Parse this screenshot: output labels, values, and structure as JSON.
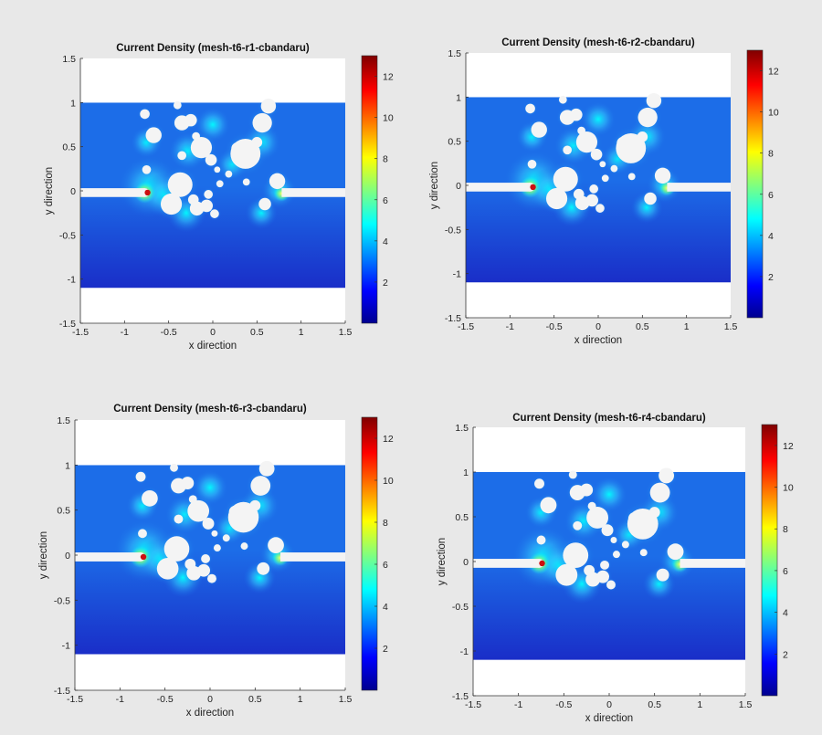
{
  "palette": {
    "background": "#e8e8e8",
    "domain_low": "#1a2ec8",
    "domain_mid": "#1c6de8",
    "hotspot": "#00ffff",
    "hole": "#f4f4f4"
  },
  "chart_data": [
    {
      "type": "heatmap",
      "title": "Current Density (mesh-t6-r1-cbandaru)",
      "xlabel": "x direction",
      "ylabel": "y direction",
      "xlim": [
        -1.5,
        1.5
      ],
      "ylim": [
        -1.5,
        1.5
      ],
      "x_ticks": [
        "-1.5",
        "-1",
        "-0.5",
        "0",
        "0.5",
        "1",
        "1.5"
      ],
      "y_ticks": [
        "1.5",
        "1",
        "0.5",
        "0",
        "-0.5",
        "-1",
        "-1.5"
      ],
      "colorbar": {
        "colormap": "jet",
        "range": [
          0,
          13
        ],
        "ticks": [
          "12",
          "10",
          "8",
          "6",
          "4",
          "2"
        ]
      }
    },
    {
      "type": "heatmap",
      "title": "Current Density (mesh-t6-r2-cbandaru)",
      "xlabel": "x direction",
      "ylabel": "y direction",
      "xlim": [
        -1.5,
        1.5
      ],
      "ylim": [
        -1.5,
        1.5
      ],
      "x_ticks": [
        "-1.5",
        "-1",
        "-0.5",
        "0",
        "0.5",
        "1",
        "1.5"
      ],
      "y_ticks": [
        "1.5",
        "1",
        "0.5",
        "0",
        "-0.5",
        "-1",
        "-1.5"
      ],
      "colorbar": {
        "colormap": "jet",
        "range": [
          0,
          13
        ],
        "ticks": [
          "12",
          "10",
          "8",
          "6",
          "4",
          "2"
        ]
      }
    },
    {
      "type": "heatmap",
      "title": "Current Density (mesh-t6-r3-cbandaru)",
      "xlabel": "x direction",
      "ylabel": "y direction",
      "xlim": [
        -1.5,
        1.5
      ],
      "ylim": [
        -1.5,
        1.5
      ],
      "x_ticks": [
        "-1.5",
        "-1",
        "-0.5",
        "0",
        "0.5",
        "1",
        "1.5"
      ],
      "y_ticks": [
        "1.5",
        "1",
        "0.5",
        "0",
        "-0.5",
        "-1",
        "-1.5"
      ],
      "colorbar": {
        "colormap": "jet",
        "range": [
          0,
          13
        ],
        "ticks": [
          "12",
          "10",
          "8",
          "6",
          "4",
          "2"
        ]
      }
    },
    {
      "type": "heatmap",
      "title": "Current Density (mesh-t6-r4-cbandaru)",
      "xlabel": "x direction",
      "ylabel": "y direction",
      "xlim": [
        -1.5,
        1.5
      ],
      "ylim": [
        -1.5,
        1.5
      ],
      "x_ticks": [
        "-1.5",
        "-1",
        "-0.5",
        "0",
        "0.5",
        "1",
        "1.5"
      ],
      "y_ticks": [
        "1.5",
        "1",
        "0.5",
        "0",
        "-0.5",
        "-1",
        "-1.5"
      ],
      "colorbar": {
        "colormap": "jet",
        "range": [
          0,
          13
        ],
        "ticks": [
          "12",
          "10",
          "8",
          "6",
          "4",
          "2"
        ]
      }
    }
  ]
}
